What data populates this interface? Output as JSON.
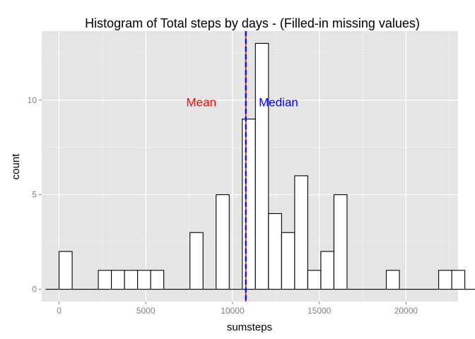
{
  "chart_data": {
    "type": "bar",
    "title": "Histogram of Total steps by days - (Filled-in missing values)",
    "xlabel": "sumsteps",
    "ylabel": "count",
    "xlim": [
      -1000,
      23000
    ],
    "ylim": [
      -0.65,
      13.65
    ],
    "x_ticks": [
      0,
      5000,
      10000,
      15000,
      20000
    ],
    "x_tick_labels": [
      "0",
      "5000",
      "10000",
      "15000",
      "20000"
    ],
    "y_ticks": [
      0,
      5,
      10
    ],
    "y_tick_labels": [
      "0",
      "5",
      "10"
    ],
    "grid": true,
    "background": "#e5e5e5",
    "grid_color": "#ffffff",
    "bar_fill": "#ffffff",
    "bar_stroke": "#000000",
    "bin_start": -755,
    "bin_width": 754.6,
    "values": [
      0,
      2,
      0,
      0,
      1,
      1,
      1,
      1,
      1,
      0,
      0,
      3,
      0,
      5,
      0,
      9,
      13,
      4,
      3,
      6,
      1,
      2,
      5,
      0,
      0,
      0,
      1,
      0,
      0,
      0,
      1,
      1,
      0
    ],
    "mean_line": {
      "value": 10766.19,
      "color": "#ff0000",
      "style": "solid"
    },
    "median_line": {
      "value": 10766.19,
      "color": "#0000ff",
      "style": "dashed"
    },
    "annotations": [
      {
        "text": "Mean",
        "x": 8200,
        "y": 9.9,
        "color": "#ff0000"
      },
      {
        "text": "Median",
        "x": 12650,
        "y": 9.9,
        "color": "#0000ff"
      }
    ]
  }
}
